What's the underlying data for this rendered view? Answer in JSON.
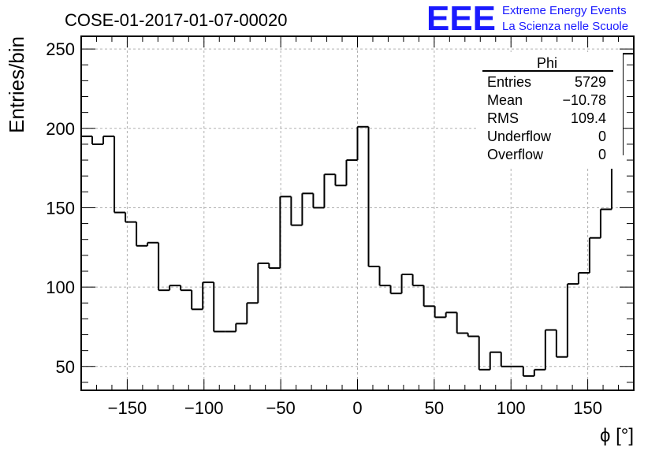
{
  "title": "COSE-01-2017-01-07-00020",
  "logo": {
    "mark": "EEE",
    "line1": "Extreme Energy Events",
    "line2": "La Scienza nelle Scuole",
    "color": "#1a1aff"
  },
  "stats_box": {
    "title": "Phi",
    "rows": [
      {
        "label": "Entries",
        "value": "5729"
      },
      {
        "label": "Mean",
        "value": "−10.78"
      },
      {
        "label": "RMS",
        "value": "109.4"
      },
      {
        "label": "Underflow",
        "value": "0"
      },
      {
        "label": "Overflow",
        "value": "0"
      }
    ]
  },
  "chart_data": {
    "type": "histogram",
    "title": "COSE-01-2017-01-07-00020",
    "xlabel": "ϕ [°]",
    "ylabel": "Entries/bin",
    "xlim": [
      -180,
      180
    ],
    "ylim": [
      35,
      258
    ],
    "xticks": [
      -150,
      -100,
      -50,
      0,
      50,
      100,
      150
    ],
    "xtick_labels": [
      "−150",
      "−100",
      "−50",
      "0",
      "50",
      "100",
      "150"
    ],
    "yticks": [
      50,
      100,
      150,
      200,
      250
    ],
    "ytick_labels": [
      "50",
      "100",
      "150",
      "200",
      "250"
    ],
    "grid": true,
    "legend": "top-right statistics box",
    "bin_width": 7.2,
    "values": [
      195,
      190,
      195,
      147,
      141,
      126,
      128,
      98,
      101,
      98,
      86,
      103,
      72,
      72,
      77,
      90,
      115,
      112,
      157,
      139,
      159,
      150,
      171,
      164,
      180,
      201,
      113,
      101,
      96,
      108,
      101,
      88,
      81,
      84,
      71,
      69,
      48,
      59,
      50,
      50,
      44,
      48,
      73,
      56,
      102,
      109,
      131,
      149,
      183,
      247
    ]
  }
}
